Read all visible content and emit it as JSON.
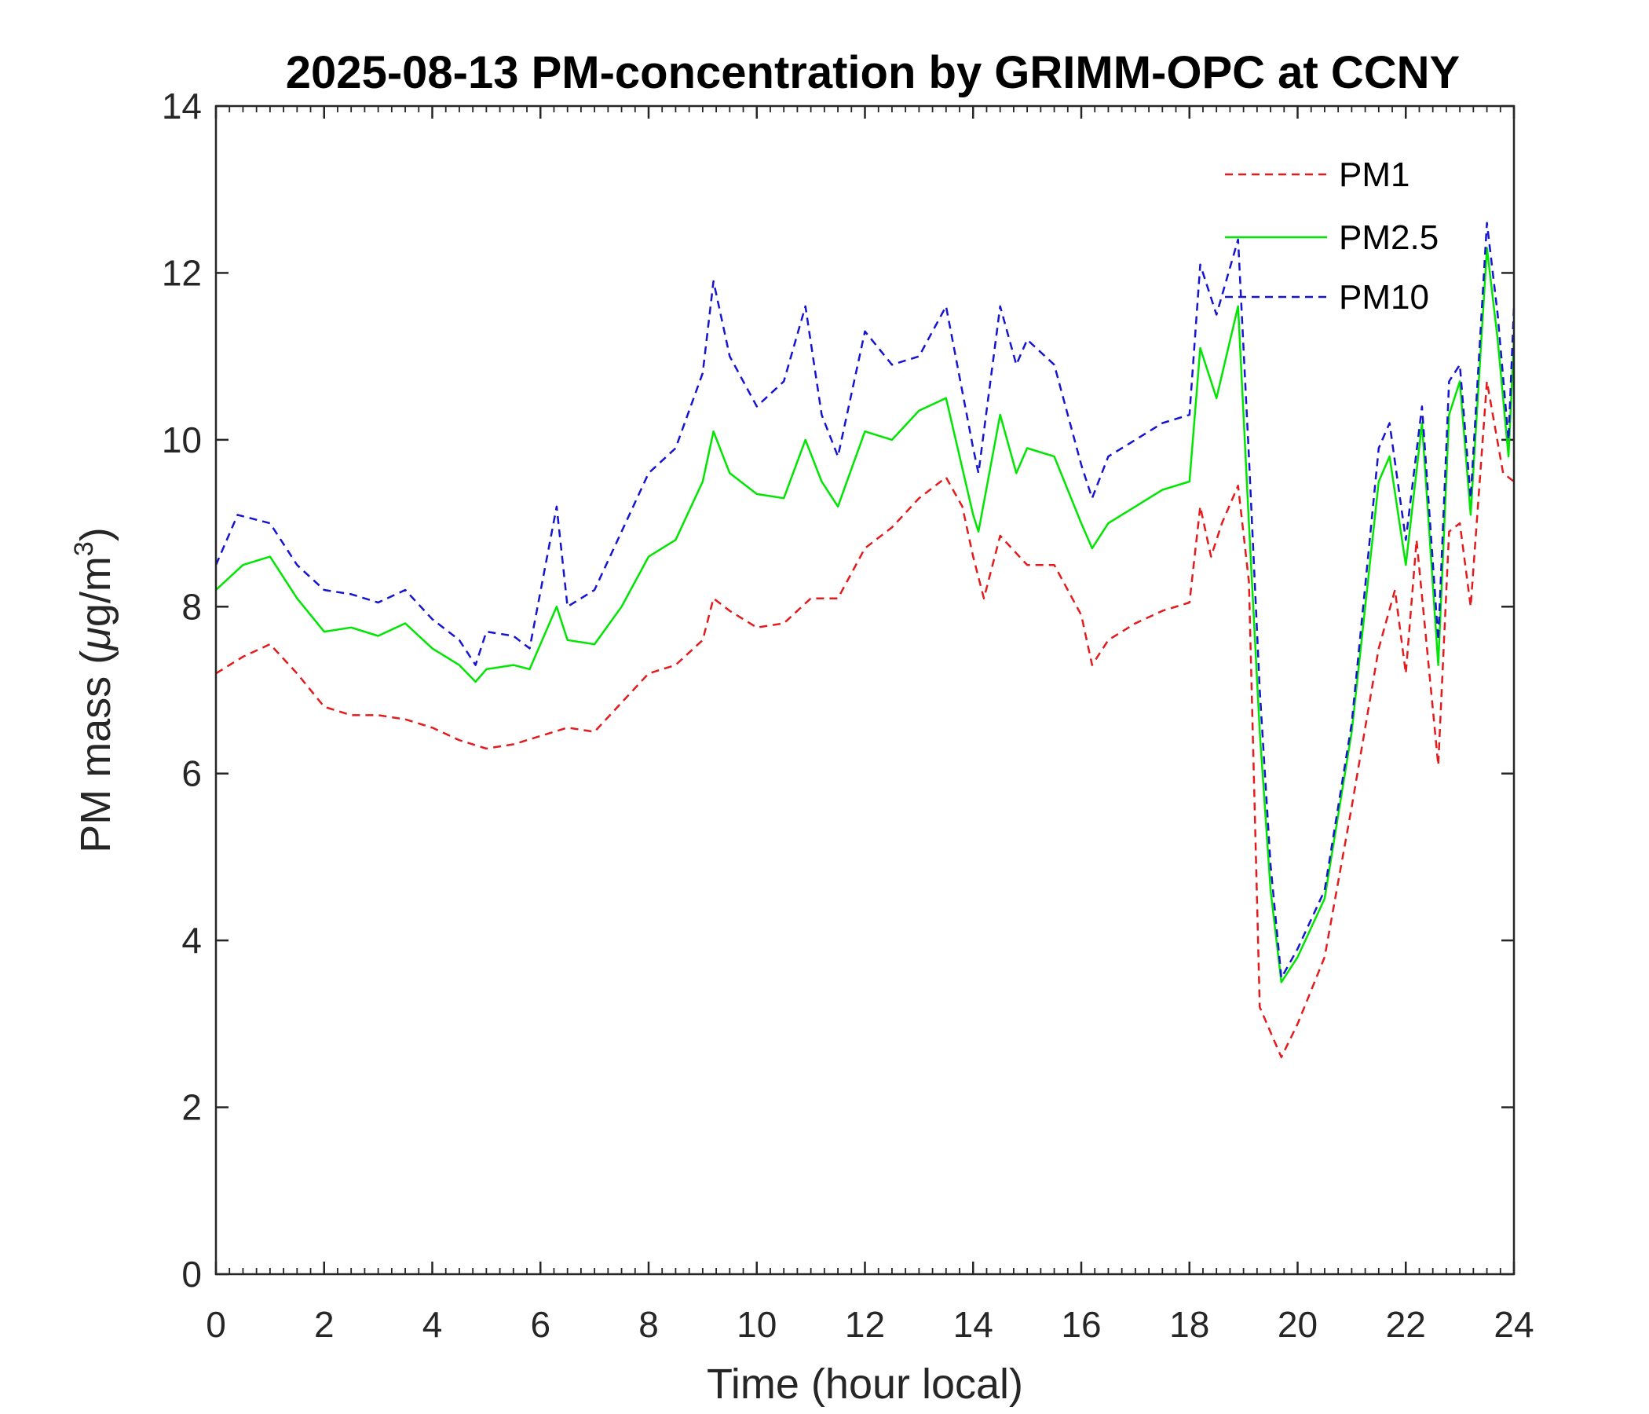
{
  "chart_data": {
    "type": "line",
    "title": "2025-08-13 PM-concentration by GRIMM-OPC at CCNY",
    "xlabel": "Time (hour local)",
    "ylabel_main": "PM mass (",
    "ylabel_mu": "μ",
    "ylabel_unit": "g/m",
    "ylabel_sup": "3",
    "ylabel_close": ")",
    "xlim": [
      0,
      24
    ],
    "ylim": [
      0,
      14
    ],
    "x_ticks": [
      "0",
      "2",
      "4",
      "6",
      "8",
      "10",
      "12",
      "14",
      "16",
      "18",
      "20",
      "22",
      "24"
    ],
    "y_ticks": [
      "0",
      "2",
      "4",
      "6",
      "8",
      "10",
      "12",
      "14"
    ],
    "grid": false,
    "legend_position": "top-right",
    "series": [
      {
        "name": "PM1",
        "color": "#e41a1c",
        "style": "dashed",
        "points": [
          [
            0,
            7.2
          ],
          [
            0.5,
            7.4
          ],
          [
            1,
            7.55
          ],
          [
            1.5,
            7.2
          ],
          [
            2,
            6.8
          ],
          [
            2.5,
            6.7
          ],
          [
            3,
            6.7
          ],
          [
            3.5,
            6.65
          ],
          [
            4,
            6.55
          ],
          [
            4.5,
            6.4
          ],
          [
            5,
            6.3
          ],
          [
            5.5,
            6.35
          ],
          [
            6,
            6.45
          ],
          [
            6.5,
            6.55
          ],
          [
            7,
            6.5
          ],
          [
            7.5,
            6.85
          ],
          [
            8,
            7.2
          ],
          [
            8.5,
            7.3
          ],
          [
            9,
            7.6
          ],
          [
            9.2,
            8.1
          ],
          [
            9.5,
            7.95
          ],
          [
            10,
            7.75
          ],
          [
            10.5,
            7.8
          ],
          [
            11,
            8.1
          ],
          [
            11.5,
            8.1
          ],
          [
            12,
            8.7
          ],
          [
            12.5,
            8.95
          ],
          [
            13,
            9.3
          ],
          [
            13.5,
            9.55
          ],
          [
            13.8,
            9.2
          ],
          [
            14,
            8.6
          ],
          [
            14.2,
            8.1
          ],
          [
            14.5,
            8.85
          ],
          [
            15,
            8.5
          ],
          [
            15.5,
            8.5
          ],
          [
            16,
            7.9
          ],
          [
            16.2,
            7.3
          ],
          [
            16.5,
            7.6
          ],
          [
            17,
            7.8
          ],
          [
            17.5,
            7.95
          ],
          [
            18,
            8.05
          ],
          [
            18.2,
            9.2
          ],
          [
            18.4,
            8.6
          ],
          [
            18.6,
            9.0
          ],
          [
            18.9,
            9.45
          ],
          [
            19.1,
            8.3
          ],
          [
            19.3,
            3.2
          ],
          [
            19.5,
            2.9
          ],
          [
            19.7,
            2.6
          ],
          [
            20,
            3.0
          ],
          [
            20.5,
            3.8
          ],
          [
            21,
            5.6
          ],
          [
            21.5,
            7.5
          ],
          [
            21.8,
            8.2
          ],
          [
            22,
            7.2
          ],
          [
            22.2,
            8.8
          ],
          [
            22.6,
            6.1
          ],
          [
            22.8,
            8.9
          ],
          [
            23,
            9.0
          ],
          [
            23.2,
            8.0
          ],
          [
            23.5,
            10.7
          ],
          [
            23.8,
            9.6
          ],
          [
            24,
            9.5
          ]
        ]
      },
      {
        "name": "PM2.5",
        "color": "#00e600",
        "style": "solid",
        "points": [
          [
            0,
            8.2
          ],
          [
            0.5,
            8.5
          ],
          [
            1,
            8.6
          ],
          [
            1.5,
            8.1
          ],
          [
            2,
            7.7
          ],
          [
            2.5,
            7.75
          ],
          [
            3,
            7.65
          ],
          [
            3.5,
            7.8
          ],
          [
            4,
            7.5
          ],
          [
            4.5,
            7.3
          ],
          [
            4.8,
            7.1
          ],
          [
            5,
            7.25
          ],
          [
            5.5,
            7.3
          ],
          [
            5.8,
            7.25
          ],
          [
            6.3,
            8.0
          ],
          [
            6.5,
            7.6
          ],
          [
            7,
            7.55
          ],
          [
            7.5,
            8.0
          ],
          [
            8,
            8.6
          ],
          [
            8.5,
            8.8
          ],
          [
            9,
            9.5
          ],
          [
            9.2,
            10.1
          ],
          [
            9.5,
            9.6
          ],
          [
            10,
            9.35
          ],
          [
            10.5,
            9.3
          ],
          [
            10.9,
            10.0
          ],
          [
            11.2,
            9.5
          ],
          [
            11.5,
            9.2
          ],
          [
            12,
            10.1
          ],
          [
            12.5,
            10.0
          ],
          [
            13,
            10.35
          ],
          [
            13.5,
            10.5
          ],
          [
            14,
            9.1
          ],
          [
            14.1,
            8.9
          ],
          [
            14.5,
            10.3
          ],
          [
            14.8,
            9.6
          ],
          [
            15,
            9.9
          ],
          [
            15.5,
            9.8
          ],
          [
            16,
            9.0
          ],
          [
            16.2,
            8.7
          ],
          [
            16.5,
            9.0
          ],
          [
            17,
            9.2
          ],
          [
            17.5,
            9.4
          ],
          [
            18,
            9.5
          ],
          [
            18.2,
            11.1
          ],
          [
            18.5,
            10.5
          ],
          [
            18.9,
            11.6
          ],
          [
            19.1,
            9.0
          ],
          [
            19.3,
            6.5
          ],
          [
            19.5,
            4.6
          ],
          [
            19.7,
            3.5
          ],
          [
            20,
            3.8
          ],
          [
            20.5,
            4.5
          ],
          [
            21,
            6.5
          ],
          [
            21.5,
            9.5
          ],
          [
            21.7,
            9.8
          ],
          [
            22,
            8.5
          ],
          [
            22.3,
            10.2
          ],
          [
            22.6,
            7.3
          ],
          [
            22.8,
            10.3
          ],
          [
            23,
            10.7
          ],
          [
            23.2,
            9.1
          ],
          [
            23.5,
            12.3
          ],
          [
            23.7,
            11.2
          ],
          [
            23.9,
            9.8
          ],
          [
            24,
            11.2
          ]
        ]
      },
      {
        "name": "PM10",
        "color": "#1414d2",
        "style": "dashed",
        "points": [
          [
            0,
            8.5
          ],
          [
            0.4,
            9.1
          ],
          [
            1,
            9.0
          ],
          [
            1.5,
            8.5
          ],
          [
            2,
            8.2
          ],
          [
            2.5,
            8.15
          ],
          [
            3,
            8.05
          ],
          [
            3.5,
            8.2
          ],
          [
            4,
            7.85
          ],
          [
            4.5,
            7.6
          ],
          [
            4.8,
            7.3
          ],
          [
            5,
            7.7
          ],
          [
            5.5,
            7.65
          ],
          [
            5.8,
            7.5
          ],
          [
            6.3,
            9.2
          ],
          [
            6.5,
            8.0
          ],
          [
            7,
            8.2
          ],
          [
            7.5,
            8.9
          ],
          [
            8,
            9.6
          ],
          [
            8.5,
            9.9
          ],
          [
            9,
            10.8
          ],
          [
            9.2,
            11.9
          ],
          [
            9.5,
            11.0
          ],
          [
            10,
            10.4
          ],
          [
            10.5,
            10.7
          ],
          [
            10.9,
            11.6
          ],
          [
            11.2,
            10.3
          ],
          [
            11.5,
            9.8
          ],
          [
            12,
            11.3
          ],
          [
            12.5,
            10.9
          ],
          [
            13,
            11.0
          ],
          [
            13.5,
            11.6
          ],
          [
            14,
            9.9
          ],
          [
            14.1,
            9.6
          ],
          [
            14.5,
            11.6
          ],
          [
            14.8,
            10.9
          ],
          [
            15,
            11.2
          ],
          [
            15.5,
            10.9
          ],
          [
            16,
            9.7
          ],
          [
            16.2,
            9.3
          ],
          [
            16.5,
            9.8
          ],
          [
            17,
            10.0
          ],
          [
            17.5,
            10.2
          ],
          [
            18,
            10.3
          ],
          [
            18.2,
            12.1
          ],
          [
            18.5,
            11.5
          ],
          [
            18.9,
            12.4
          ],
          [
            19.1,
            9.8
          ],
          [
            19.3,
            7.0
          ],
          [
            19.5,
            4.9
          ],
          [
            19.7,
            3.55
          ],
          [
            20,
            3.9
          ],
          [
            20.5,
            4.6
          ],
          [
            21,
            6.6
          ],
          [
            21.5,
            9.9
          ],
          [
            21.7,
            10.2
          ],
          [
            22,
            8.8
          ],
          [
            22.3,
            10.4
          ],
          [
            22.6,
            7.6
          ],
          [
            22.8,
            10.7
          ],
          [
            23,
            10.9
          ],
          [
            23.2,
            9.3
          ],
          [
            23.5,
            12.6
          ],
          [
            23.7,
            11.5
          ],
          [
            23.9,
            10.0
          ],
          [
            24,
            11.6
          ]
        ]
      }
    ]
  }
}
